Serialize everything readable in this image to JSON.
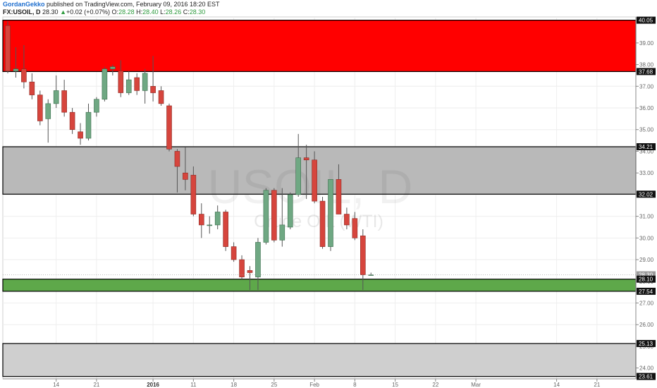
{
  "header": {
    "author": "GordanGekko",
    "published": "published on TradingView.com, February 09, 2016 18:20 EST",
    "symbol": "FX:USOIL, D",
    "last": "28.30",
    "change_arrow": "▲",
    "change": "+0.02 (+0.07%)",
    "o_label": "O:",
    "o_val": "28.28",
    "h_label": "H:",
    "h_val": "28.40",
    "l_label": "L:",
    "l_val": "28.26",
    "c_label": "C:",
    "c_val": "28.30"
  },
  "watermark": {
    "big": "USOIL, D",
    "small": "Crude OIL (WTI)"
  },
  "colors": {
    "up": "#6fa883",
    "down": "#d6453d",
    "zone_red": "#ff0000",
    "zone_gray": "#b9b9b9",
    "zone_green": "#5ea84a",
    "zone_gray_light": "#cfcfcf"
  },
  "chart_data": {
    "type": "candlestick",
    "ylim": [
      23.5,
      40.2
    ],
    "yticks": [
      "24.00",
      "25.00",
      "26.00",
      "27.00",
      "28.00",
      "29.00",
      "30.00",
      "31.00",
      "32.00",
      "33.00",
      "34.00",
      "35.00",
      "36.00",
      "37.00",
      "38.00",
      "39.00"
    ],
    "price_labels": [
      {
        "value": 40.05,
        "text": "40.05",
        "style": "dark"
      },
      {
        "value": 37.68,
        "text": "37.68",
        "style": "dark"
      },
      {
        "value": 34.21,
        "text": "34.21",
        "style": "dark"
      },
      {
        "value": 32.02,
        "text": "32.02",
        "style": "dark"
      },
      {
        "value": 28.3,
        "text": "28.30",
        "style": "gray"
      },
      {
        "value": 28.1,
        "text": "28.10",
        "style": "dark"
      },
      {
        "value": 27.54,
        "text": "27.54",
        "style": "dark"
      },
      {
        "value": 25.13,
        "text": "25.13",
        "style": "dark"
      },
      {
        "value": 23.61,
        "text": "23.61",
        "style": "dark"
      }
    ],
    "zones": [
      {
        "from": 37.68,
        "to": 40.05,
        "color": "#ff0000"
      },
      {
        "from": 32.02,
        "to": 34.21,
        "color": "#b9b9b9"
      },
      {
        "from": 27.54,
        "to": 28.1,
        "color": "#5ea84a"
      },
      {
        "from": 23.61,
        "to": 25.13,
        "color": "#cfcfcf"
      }
    ],
    "x_ticks": [
      {
        "index": 6,
        "text": "14"
      },
      {
        "index": 11,
        "text": "21"
      },
      {
        "index": 18,
        "text": "2016"
      },
      {
        "index": 23,
        "text": "11"
      },
      {
        "index": 28,
        "text": "18"
      },
      {
        "index": 33,
        "text": "25"
      },
      {
        "index": 38,
        "text": "Feb"
      },
      {
        "index": 43,
        "text": "8"
      },
      {
        "index": 48,
        "text": "15"
      },
      {
        "index": 53,
        "text": "22"
      },
      {
        "index": 58,
        "text": "Mar"
      },
      {
        "index": 68,
        "text": "14"
      },
      {
        "index": 73,
        "text": "21"
      }
    ],
    "candles": [
      {
        "o": 39.8,
        "h": 40.0,
        "l": 37.6,
        "c": 37.7
      },
      {
        "o": 37.7,
        "h": 38.8,
        "l": 37.4,
        "c": 37.8
      },
      {
        "o": 37.8,
        "h": 38.9,
        "l": 36.9,
        "c": 37.2
      },
      {
        "o": 37.2,
        "h": 37.6,
        "l": 36.4,
        "c": 36.6
      },
      {
        "o": 36.6,
        "h": 36.8,
        "l": 35.2,
        "c": 35.4
      },
      {
        "o": 35.5,
        "h": 36.4,
        "l": 34.4,
        "c": 36.2
      },
      {
        "o": 36.2,
        "h": 37.5,
        "l": 36.0,
        "c": 36.8
      },
      {
        "o": 36.8,
        "h": 37.3,
        "l": 35.6,
        "c": 35.8
      },
      {
        "o": 35.8,
        "h": 36.0,
        "l": 34.8,
        "c": 35.0
      },
      {
        "o": 34.9,
        "h": 35.3,
        "l": 34.3,
        "c": 34.6
      },
      {
        "o": 34.6,
        "h": 36.2,
        "l": 34.5,
        "c": 35.8
      },
      {
        "o": 35.8,
        "h": 36.5,
        "l": 35.6,
        "c": 36.4
      },
      {
        "o": 36.4,
        "h": 37.9,
        "l": 36.3,
        "c": 37.8
      },
      {
        "o": 37.8,
        "h": 38.0,
        "l": 37.5,
        "c": 37.9
      },
      {
        "o": 37.7,
        "h": 38.2,
        "l": 36.5,
        "c": 36.7
      },
      {
        "o": 36.7,
        "h": 37.7,
        "l": 36.6,
        "c": 37.3
      },
      {
        "o": 37.4,
        "h": 37.6,
        "l": 36.6,
        "c": 36.8
      },
      {
        "o": 36.8,
        "h": 37.8,
        "l": 36.2,
        "c": 37.6
      },
      {
        "o": 37.0,
        "h": 38.4,
        "l": 36.3,
        "c": 36.7
      },
      {
        "o": 36.8,
        "h": 37.0,
        "l": 36.1,
        "c": 36.2
      },
      {
        "o": 36.1,
        "h": 36.2,
        "l": 34.0,
        "c": 34.1
      },
      {
        "o": 34.0,
        "h": 34.1,
        "l": 32.1,
        "c": 33.3
      },
      {
        "o": 33.0,
        "h": 34.2,
        "l": 32.2,
        "c": 32.7
      },
      {
        "o": 32.9,
        "h": 33.3,
        "l": 31.0,
        "c": 31.1
      },
      {
        "o": 31.1,
        "h": 31.6,
        "l": 30.0,
        "c": 30.6
      },
      {
        "o": 30.6,
        "h": 31.0,
        "l": 30.2,
        "c": 30.6
      },
      {
        "o": 30.6,
        "h": 31.5,
        "l": 30.4,
        "c": 31.2
      },
      {
        "o": 31.2,
        "h": 31.3,
        "l": 29.4,
        "c": 29.6
      },
      {
        "o": 29.6,
        "h": 29.8,
        "l": 28.9,
        "c": 29.0
      },
      {
        "o": 29.0,
        "h": 29.2,
        "l": 28.1,
        "c": 28.2
      },
      {
        "o": 28.5,
        "h": 28.7,
        "l": 27.6,
        "c": 28.4
      },
      {
        "o": 28.2,
        "h": 30.0,
        "l": 27.6,
        "c": 29.8
      },
      {
        "o": 29.8,
        "h": 32.3,
        "l": 29.7,
        "c": 32.2
      },
      {
        "o": 32.2,
        "h": 32.3,
        "l": 29.8,
        "c": 29.9
      },
      {
        "o": 29.9,
        "h": 32.3,
        "l": 29.6,
        "c": 30.6
      },
      {
        "o": 30.5,
        "h": 32.1,
        "l": 30.4,
        "c": 32.0
      },
      {
        "o": 32.0,
        "h": 34.8,
        "l": 31.9,
        "c": 33.7
      },
      {
        "o": 33.7,
        "h": 34.3,
        "l": 31.8,
        "c": 33.6
      },
      {
        "o": 33.6,
        "h": 34.0,
        "l": 31.6,
        "c": 31.7
      },
      {
        "o": 31.7,
        "h": 31.9,
        "l": 29.5,
        "c": 29.6
      },
      {
        "o": 29.6,
        "h": 32.7,
        "l": 29.4,
        "c": 32.7
      },
      {
        "o": 32.7,
        "h": 33.4,
        "l": 31.1,
        "c": 31.1
      },
      {
        "o": 31.1,
        "h": 31.4,
        "l": 30.4,
        "c": 30.6
      },
      {
        "o": 30.9,
        "h": 31.2,
        "l": 29.9,
        "c": 30.0
      },
      {
        "o": 30.1,
        "h": 30.4,
        "l": 27.6,
        "c": 28.3
      },
      {
        "o": 28.28,
        "h": 28.4,
        "l": 28.26,
        "c": 28.3
      }
    ]
  }
}
